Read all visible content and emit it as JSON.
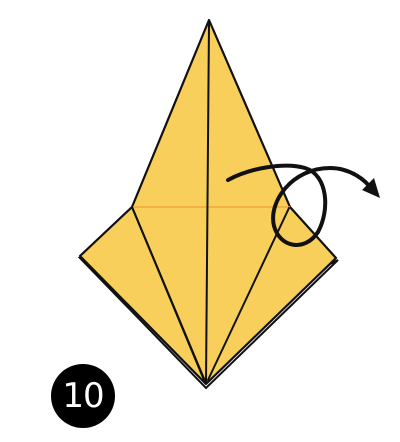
{
  "step": {
    "number": "10"
  },
  "colors": {
    "paper_fill": "#f8cf5a",
    "paper_shade": "#f3c34a",
    "fold_line": "#111111",
    "outline": "#111111",
    "crease_orange": "#f0a93a",
    "badge_bg": "#000000",
    "badge_text": "#ffffff",
    "arrow": "#111111"
  },
  "icons": {
    "turn_over_arrow": "loop-arrow-icon"
  }
}
